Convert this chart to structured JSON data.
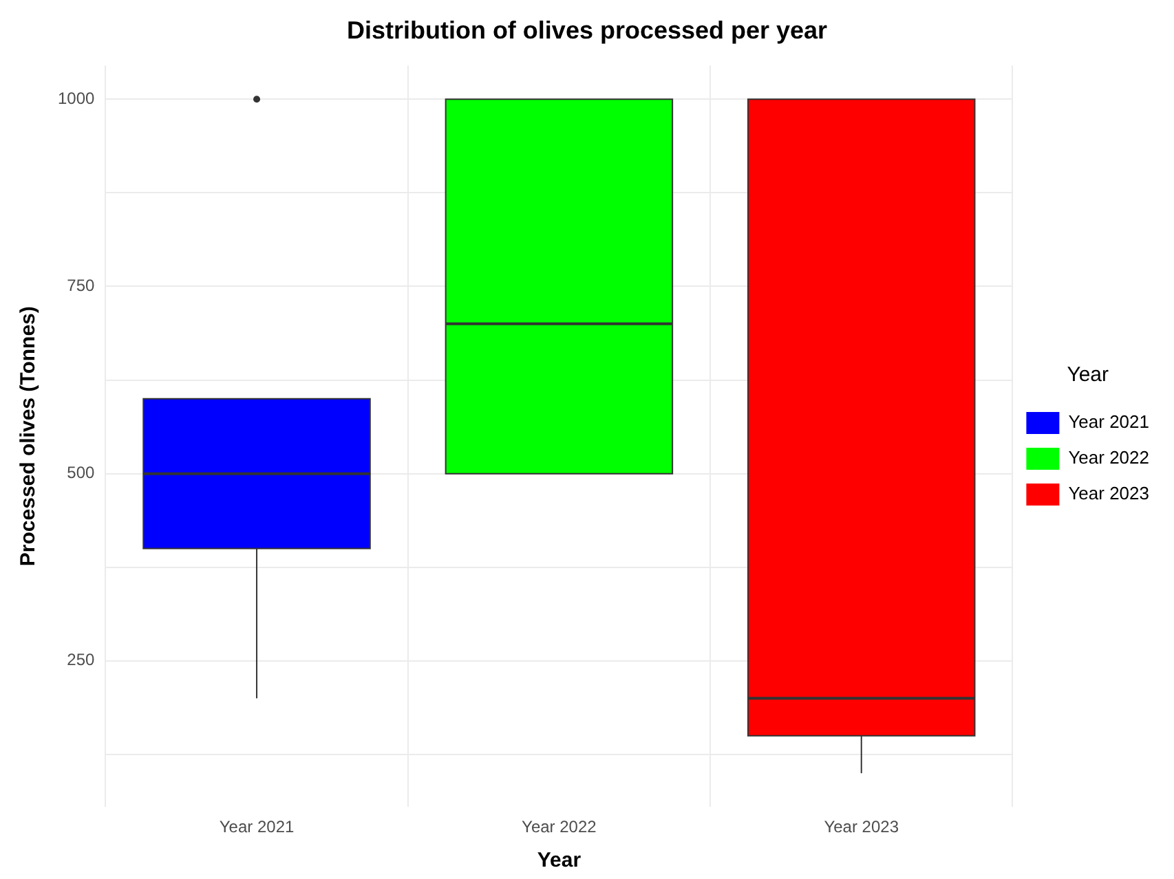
{
  "chart_data": {
    "type": "box",
    "title": "Distribution of olives processed per year",
    "xlabel": "Year",
    "ylabel": "Processed olives (Tonnes)",
    "legend_title": "Year",
    "categories": [
      "Year 2021",
      "Year 2022",
      "Year 2023"
    ],
    "series": [
      {
        "name": "Year 2021",
        "color": "#0000ff",
        "boxes": [
          {
            "low": 200,
            "q1": 400,
            "median": 500,
            "q3": 600,
            "high": 600,
            "outliers": [
              1000
            ]
          },
          null,
          null
        ]
      },
      {
        "name": "Year 2022",
        "color": "#00ff00",
        "boxes": [
          null,
          {
            "low": 500,
            "q1": 500,
            "median": 700,
            "q3": 1000,
            "high": 1000
          },
          null
        ]
      },
      {
        "name": "Year 2023",
        "color": "#ff0000",
        "boxes": [
          null,
          null,
          {
            "low": 100,
            "q1": 150,
            "median": 200,
            "q3": 1000,
            "high": 1000
          }
        ]
      }
    ],
    "ylim": [
      55,
      1045
    ],
    "yticks": [
      {
        "value": 125,
        "label": null
      },
      250,
      {
        "value": 375,
        "label": null
      },
      500,
      {
        "value": 625,
        "label": null
      },
      750,
      {
        "value": 875,
        "label": null
      },
      1000
    ],
    "grid": true,
    "legend": "right"
  }
}
